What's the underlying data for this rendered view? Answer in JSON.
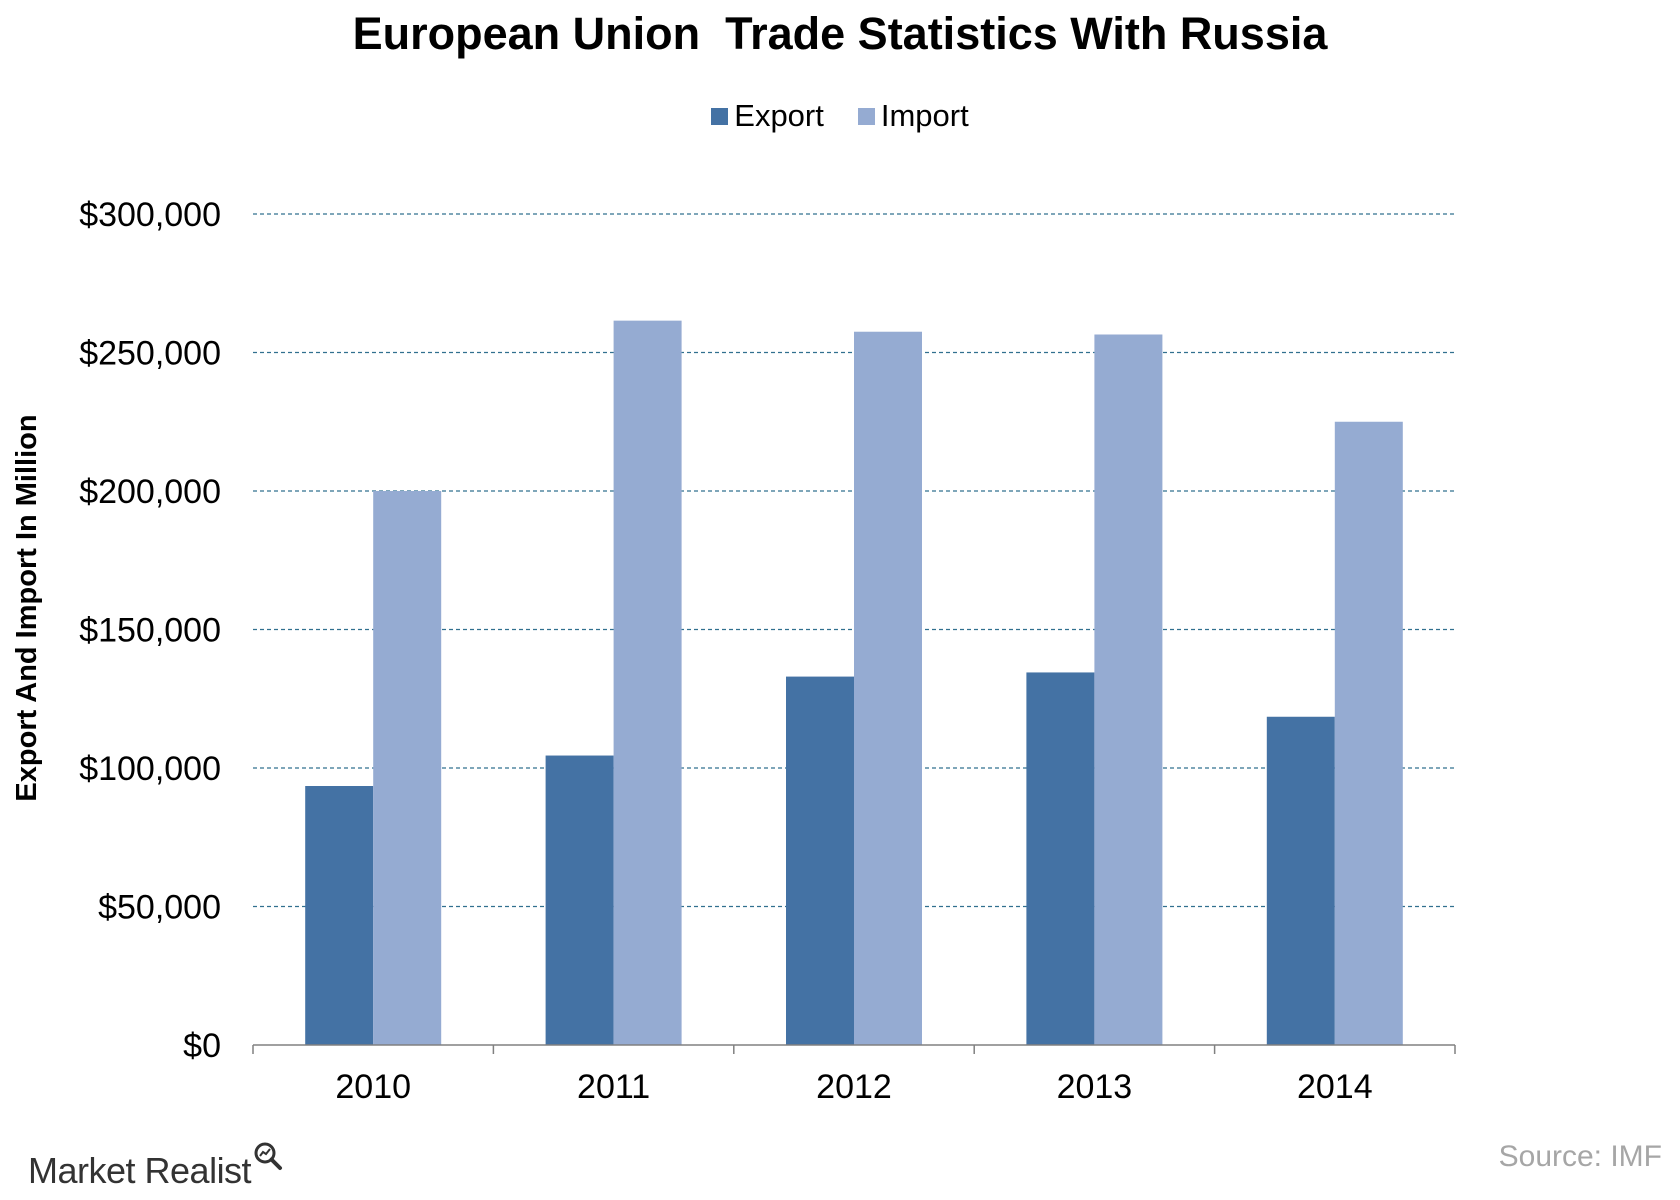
{
  "chart_data": {
    "type": "bar",
    "title": "European Union  Trade Statistics With Russia",
    "xlabel": "",
    "ylabel": "Export And Import In Million",
    "categories": [
      "2010",
      "2011",
      "2012",
      "2013",
      "2014"
    ],
    "series": [
      {
        "name": "Export",
        "values": [
          93500,
          104500,
          133000,
          134500,
          118500
        ],
        "color": "#4472a4"
      },
      {
        "name": "Import",
        "values": [
          200000,
          261500,
          257500,
          256500,
          225000
        ],
        "color": "#95abd2"
      }
    ],
    "ylim": [
      0,
      300000
    ],
    "yticks": [
      0,
      50000,
      100000,
      150000,
      200000,
      250000,
      300000
    ],
    "ytick_labels": [
      "$0",
      "$50,000",
      "$100,000",
      "$150,000",
      "$200,000",
      "$250,000",
      "$300,000"
    ],
    "grid": true,
    "grid_style": "dashed",
    "grid_color": "#31708f",
    "legend_position": "top-center"
  },
  "footer": {
    "brand": "Market Realist",
    "source": "Source: IMF"
  }
}
